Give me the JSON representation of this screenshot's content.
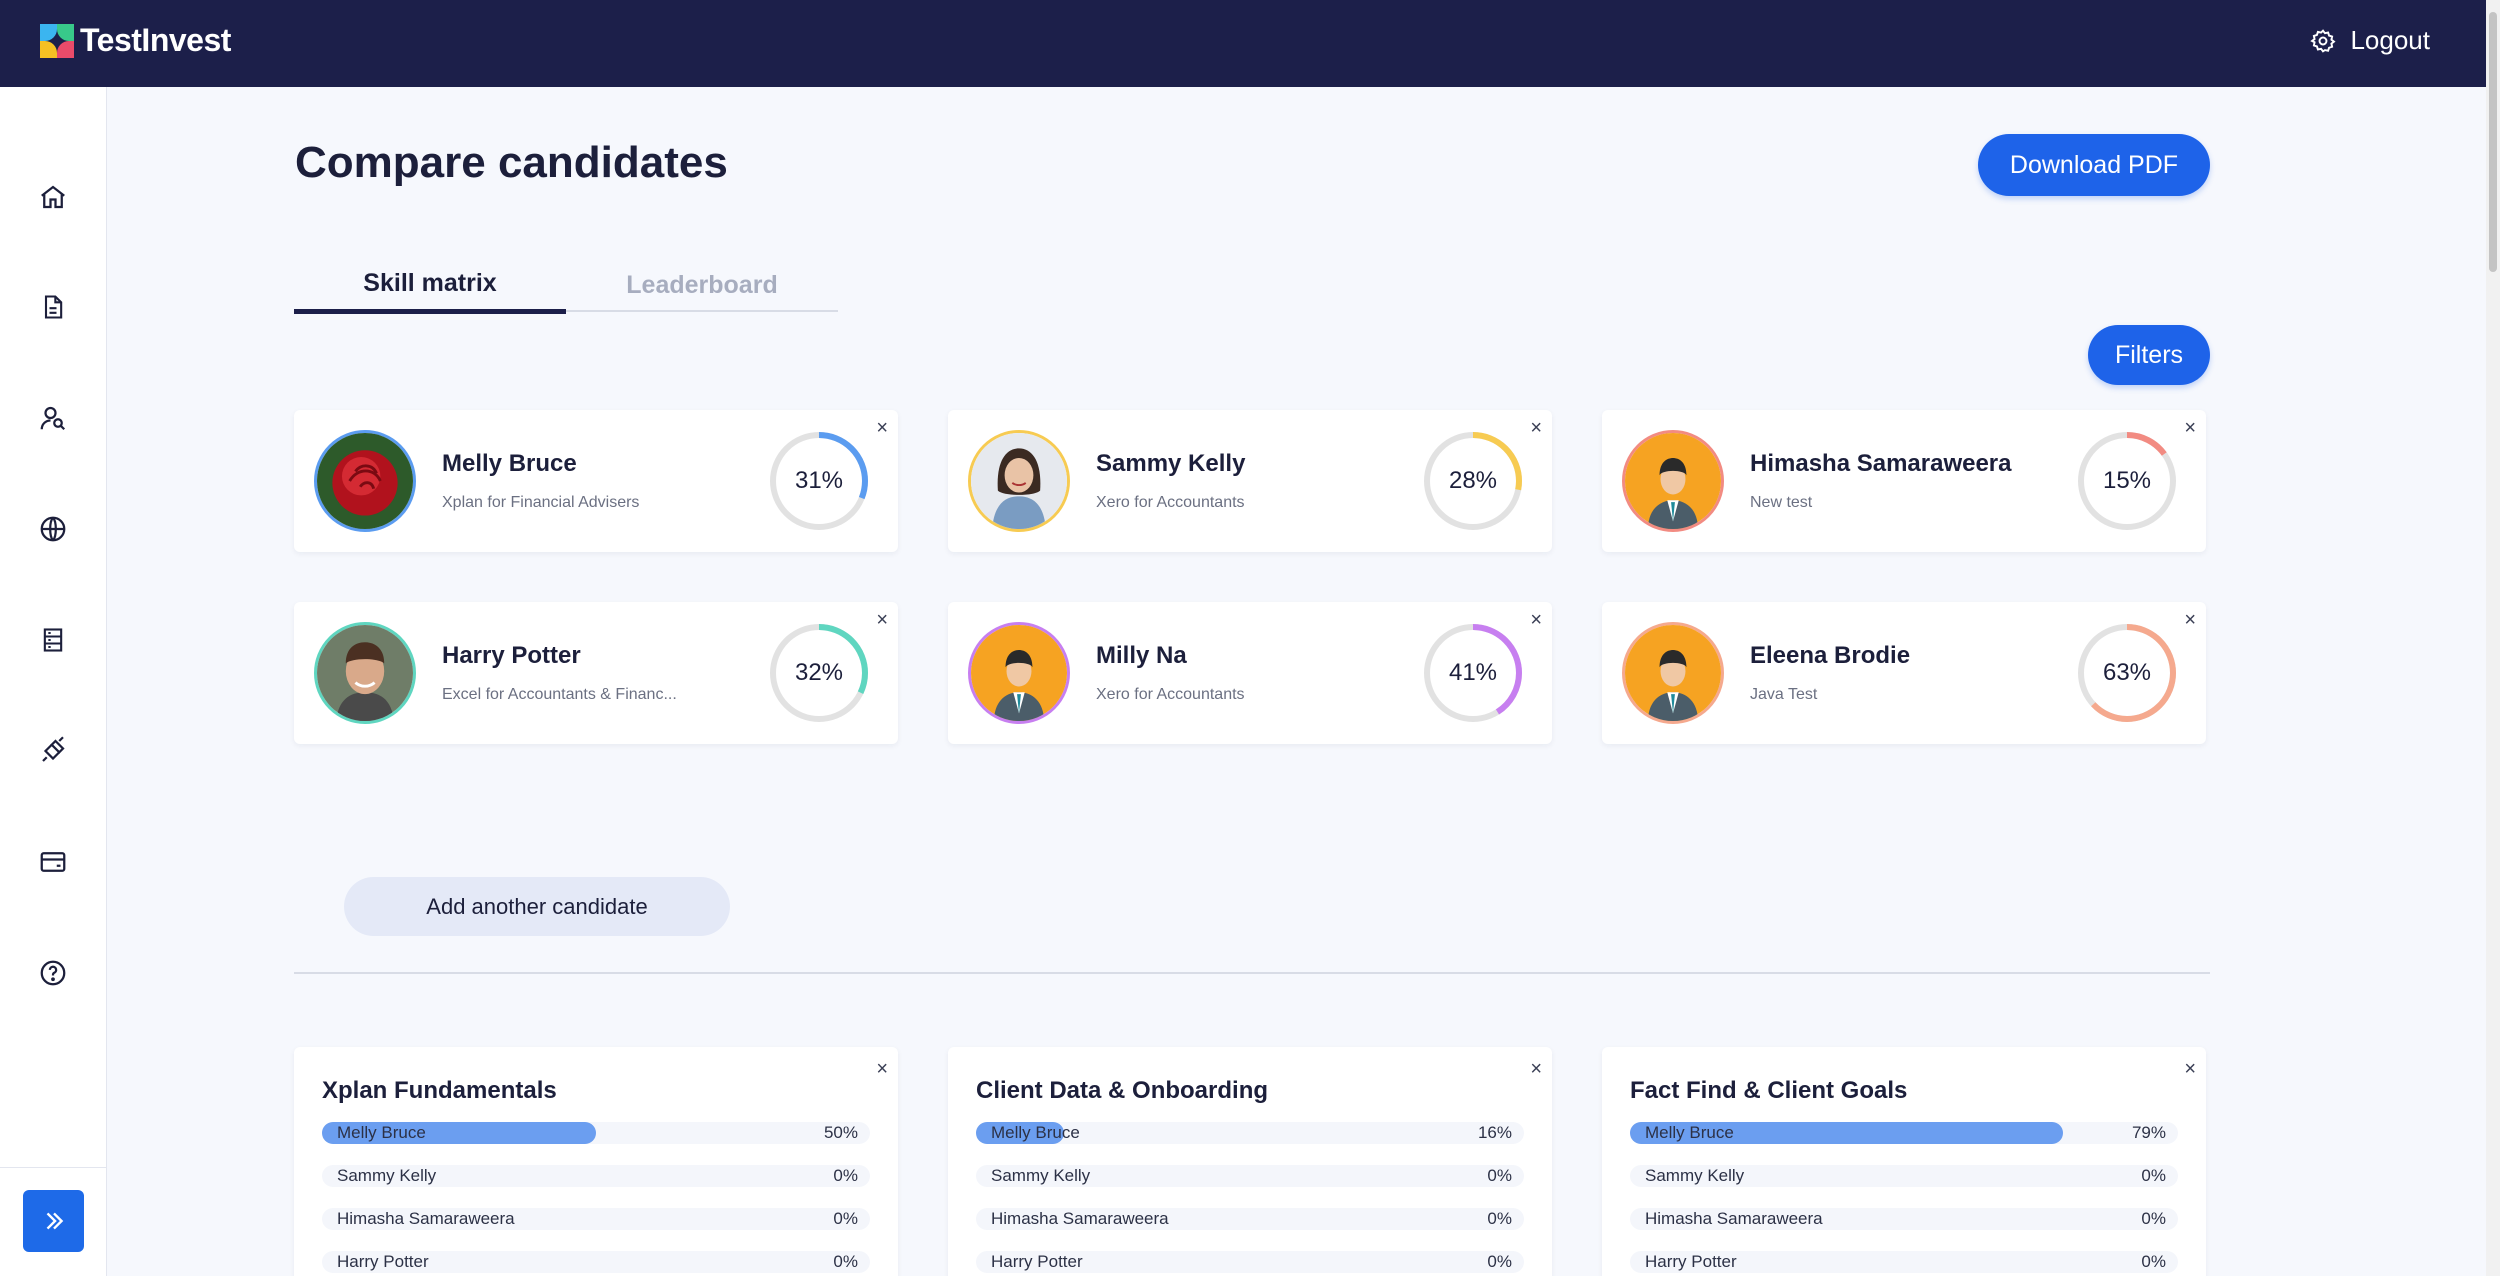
{
  "header": {
    "brand": "TestInvest",
    "logout_label": "Logout"
  },
  "sidebar": {
    "icons": [
      "home-icon",
      "document-icon",
      "candidates-icon",
      "globe-icon",
      "server-icon",
      "integration-icon",
      "card-icon",
      "help-icon"
    ]
  },
  "page": {
    "title": "Compare candidates",
    "download_label": "Download PDF",
    "filters_label": "Filters",
    "add_candidate_label": "Add another candidate"
  },
  "tabs": [
    {
      "label": "Skill matrix",
      "active": true
    },
    {
      "label": "Leaderboard",
      "active": false
    }
  ],
  "close_symbol": "×",
  "candidates": [
    {
      "name": "Melly Bruce",
      "test": "Xplan for Financial Advisers",
      "score": "31%",
      "score_value": 31,
      "color": "#5b9cf0",
      "avatar": "rose"
    },
    {
      "name": "Sammy Kelly",
      "test": "Xero for Accountants",
      "score": "28%",
      "score_value": 28,
      "color": "#f7cb52",
      "avatar": "woman"
    },
    {
      "name": "Himasha Samaraweera",
      "test": "New test",
      "score": "15%",
      "score_value": 15,
      "color": "#f28b82",
      "avatar": "default"
    },
    {
      "name": "Harry Potter",
      "test": "Excel for Accountants & Financ...",
      "score": "32%",
      "score_value": 32,
      "color": "#5fd6c0",
      "avatar": "man"
    },
    {
      "name": "Milly Na",
      "test": "Xero for Accountants",
      "score": "41%",
      "score_value": 41,
      "color": "#c77ff0",
      "avatar": "default"
    },
    {
      "name": "Eleena Brodie",
      "test": "Java Test",
      "score": "63%",
      "score_value": 63,
      "color": "#f5a98e",
      "avatar": "default"
    }
  ],
  "skills": [
    {
      "title": "Xplan Fundamentals",
      "rows": [
        {
          "name": "Melly Bruce",
          "pct": "50%",
          "value": 50
        },
        {
          "name": "Sammy Kelly",
          "pct": "0%",
          "value": 0
        },
        {
          "name": "Himasha Samaraweera",
          "pct": "0%",
          "value": 0
        },
        {
          "name": "Harry Potter",
          "pct": "0%",
          "value": 0
        }
      ]
    },
    {
      "title": "Client Data & Onboarding",
      "rows": [
        {
          "name": "Melly Bruce",
          "pct": "16%",
          "value": 16
        },
        {
          "name": "Sammy Kelly",
          "pct": "0%",
          "value": 0
        },
        {
          "name": "Himasha Samaraweera",
          "pct": "0%",
          "value": 0
        },
        {
          "name": "Harry Potter",
          "pct": "0%",
          "value": 0
        }
      ]
    },
    {
      "title": "Fact Find & Client Goals",
      "rows": [
        {
          "name": "Melly Bruce",
          "pct": "79%",
          "value": 79
        },
        {
          "name": "Sammy Kelly",
          "pct": "0%",
          "value": 0
        },
        {
          "name": "Himasha Samaraweera",
          "pct": "0%",
          "value": 0
        },
        {
          "name": "Harry Potter",
          "pct": "0%",
          "value": 0
        }
      ]
    }
  ]
}
